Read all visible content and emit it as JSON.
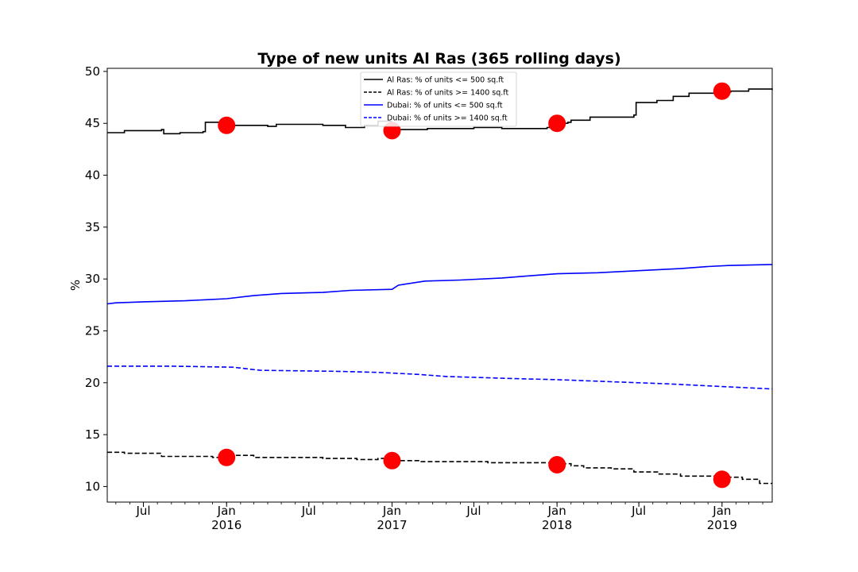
{
  "chart_data": {
    "type": "line",
    "title": "Type of new units Al Ras (365 rolling days)",
    "xlabel": "",
    "ylabel": "%",
    "xlim": [
      "2015-04-12",
      "2019-04-22"
    ],
    "ylim": [
      8.5,
      50.3
    ],
    "yticks": [
      10,
      15,
      20,
      25,
      30,
      35,
      40,
      45,
      50
    ],
    "xticks": [
      {
        "date": "2015-07-01",
        "label": "Jul",
        "sublabel": ""
      },
      {
        "date": "2016-01-01",
        "label": "Jan",
        "sublabel": "2016"
      },
      {
        "date": "2016-07-01",
        "label": "Jul",
        "sublabel": ""
      },
      {
        "date": "2017-01-01",
        "label": "Jan",
        "sublabel": "2017"
      },
      {
        "date": "2017-07-01",
        "label": "Jul",
        "sublabel": ""
      },
      {
        "date": "2018-01-01",
        "label": "Jan",
        "sublabel": "2018"
      },
      {
        "date": "2018-07-01",
        "label": "Jul",
        "sublabel": ""
      },
      {
        "date": "2019-01-01",
        "label": "Jan",
        "sublabel": "2019"
      }
    ],
    "grid": false,
    "legend_position": "top-center",
    "series": [
      {
        "name": "Al Ras: % of units <= 500 sq.ft",
        "color": "#000000",
        "dash": "solid",
        "step": true,
        "points": [
          [
            "2015-04-12",
            44.1
          ],
          [
            "2015-05-10",
            44.1
          ],
          [
            "2015-05-20",
            44.3
          ],
          [
            "2015-08-01",
            44.3
          ],
          [
            "2015-08-10",
            44.4
          ],
          [
            "2015-08-15",
            44.0
          ],
          [
            "2015-09-20",
            44.1
          ],
          [
            "2015-11-10",
            44.2
          ],
          [
            "2015-11-15",
            45.1
          ],
          [
            "2015-12-20",
            45.2
          ],
          [
            "2015-12-25",
            44.8
          ],
          [
            "2016-04-01",
            44.7
          ],
          [
            "2016-04-20",
            44.9
          ],
          [
            "2016-08-01",
            44.8
          ],
          [
            "2016-09-20",
            44.6
          ],
          [
            "2016-11-01",
            44.8
          ],
          [
            "2016-12-01",
            45.2
          ],
          [
            "2016-12-31",
            44.4
          ],
          [
            "2017-03-20",
            44.5
          ],
          [
            "2017-07-01",
            44.6
          ],
          [
            "2017-09-01",
            44.5
          ],
          [
            "2017-12-10",
            44.6
          ],
          [
            "2017-12-15",
            45.0
          ],
          [
            "2018-01-25",
            45.1
          ],
          [
            "2018-02-01",
            45.3
          ],
          [
            "2018-03-15",
            45.6
          ],
          [
            "2018-06-20",
            45.8
          ],
          [
            "2018-06-25",
            47.0
          ],
          [
            "2018-08-10",
            47.2
          ],
          [
            "2018-09-15",
            47.6
          ],
          [
            "2018-10-20",
            47.9
          ],
          [
            "2018-12-15",
            48.0
          ],
          [
            "2019-01-20",
            48.1
          ],
          [
            "2019-03-01",
            48.3
          ],
          [
            "2019-04-22",
            48.2
          ]
        ]
      },
      {
        "name": "Al Ras: % of units >= 1400 sq.ft",
        "color": "#000000",
        "dash": "dashed",
        "step": true,
        "points": [
          [
            "2015-04-12",
            13.3
          ],
          [
            "2015-05-20",
            13.2
          ],
          [
            "2015-08-10",
            12.9
          ],
          [
            "2015-12-01",
            12.8
          ],
          [
            "2016-01-10",
            13.0
          ],
          [
            "2016-03-01",
            12.8
          ],
          [
            "2016-08-01",
            12.7
          ],
          [
            "2016-10-15",
            12.6
          ],
          [
            "2016-12-01",
            12.7
          ],
          [
            "2017-01-10",
            12.5
          ],
          [
            "2017-03-01",
            12.4
          ],
          [
            "2017-08-01",
            12.3
          ],
          [
            "2017-12-20",
            12.2
          ],
          [
            "2018-02-01",
            12.0
          ],
          [
            "2018-03-01",
            11.8
          ],
          [
            "2018-05-01",
            11.7
          ],
          [
            "2018-06-20",
            11.4
          ],
          [
            "2018-08-15",
            11.2
          ],
          [
            "2018-10-01",
            11.0
          ],
          [
            "2019-01-15",
            10.9
          ],
          [
            "2019-02-15",
            10.7
          ],
          [
            "2019-03-25",
            10.3
          ],
          [
            "2019-04-22",
            10.3
          ]
        ]
      },
      {
        "name": "Dubai: % of units <= 500 sq.ft",
        "color": "#0000ff",
        "dash": "solid",
        "step": false,
        "points": [
          [
            "2015-04-12",
            27.6
          ],
          [
            "2015-05-01",
            27.7
          ],
          [
            "2015-07-01",
            27.8
          ],
          [
            "2015-10-01",
            27.9
          ],
          [
            "2016-01-01",
            28.1
          ],
          [
            "2016-03-01",
            28.4
          ],
          [
            "2016-05-01",
            28.6
          ],
          [
            "2016-08-01",
            28.7
          ],
          [
            "2016-10-01",
            28.9
          ],
          [
            "2017-01-01",
            29.0
          ],
          [
            "2017-01-15",
            29.4
          ],
          [
            "2017-03-15",
            29.8
          ],
          [
            "2017-06-01",
            29.9
          ],
          [
            "2017-09-01",
            30.1
          ],
          [
            "2017-11-01",
            30.3
          ],
          [
            "2018-01-01",
            30.5
          ],
          [
            "2018-04-01",
            30.6
          ],
          [
            "2018-07-01",
            30.8
          ],
          [
            "2018-10-01",
            31.0
          ],
          [
            "2018-12-01",
            31.2
          ],
          [
            "2019-01-15",
            31.3
          ],
          [
            "2019-04-22",
            31.4
          ]
        ]
      },
      {
        "name": "Dubai: % of units >= 1400 sq.ft",
        "color": "#0000ff",
        "dash": "dashed",
        "step": false,
        "points": [
          [
            "2015-04-12",
            21.6
          ],
          [
            "2015-09-01",
            21.6
          ],
          [
            "2016-01-15",
            21.5
          ],
          [
            "2016-03-15",
            21.2
          ],
          [
            "2016-09-01",
            21.1
          ],
          [
            "2016-12-01",
            21.0
          ],
          [
            "2017-03-01",
            20.8
          ],
          [
            "2017-05-01",
            20.6
          ],
          [
            "2017-10-01",
            20.4
          ],
          [
            "2018-01-01",
            20.3
          ],
          [
            "2018-05-01",
            20.1
          ],
          [
            "2018-09-01",
            19.9
          ],
          [
            "2018-12-01",
            19.7
          ],
          [
            "2019-04-22",
            19.4
          ]
        ]
      }
    ],
    "markers": {
      "color": "#ff0000",
      "points": [
        [
          "2016-01-01",
          44.8
        ],
        [
          "2017-01-01",
          44.3
        ],
        [
          "2018-01-01",
          45.0
        ],
        [
          "2019-01-01",
          48.1
        ],
        [
          "2016-01-01",
          12.8
        ],
        [
          "2017-01-01",
          12.5
        ],
        [
          "2018-01-01",
          12.1
        ],
        [
          "2019-01-01",
          10.7
        ]
      ]
    }
  }
}
